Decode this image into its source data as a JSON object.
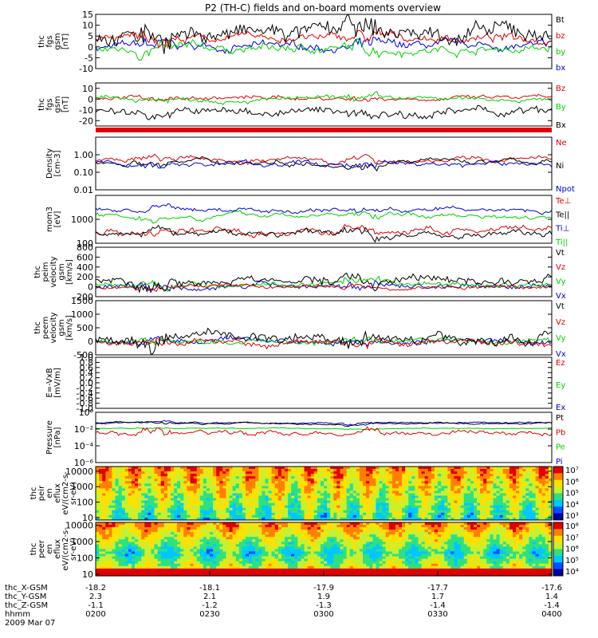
{
  "title": "P2 (TH-C) fields and on-board moments overview",
  "colors": {
    "black": "#000000",
    "red": "#e00000",
    "green": "#00d000",
    "blue": "#0000d0"
  },
  "chart_data": [
    {
      "type": "line",
      "name": "fgs_gsm",
      "ylabel": [
        "thc",
        "fgs",
        "gsm",
        "[nT]"
      ],
      "ylim": [
        -10,
        15
      ],
      "yticks": [
        "15",
        "10",
        "5",
        "0",
        "-5",
        "-10"
      ],
      "yvals": [
        15,
        10,
        5,
        0,
        -5,
        -10
      ],
      "series": [
        {
          "name": "bx",
          "color": "blue",
          "base": 0,
          "amp": 2
        },
        {
          "name": "by",
          "color": "green",
          "base": -1,
          "amp": 2
        },
        {
          "name": "bz",
          "color": "red",
          "base": 4,
          "amp": 2
        },
        {
          "name": "Bt",
          "color": "black",
          "base": 6,
          "amp": 4
        }
      ],
      "legend": [
        "Bt",
        "bz",
        "by",
        "bx"
      ]
    },
    {
      "type": "line",
      "name": "fgs_gsm_B",
      "ylabel": [
        "thc",
        "fgs",
        "gsm",
        "[nT]"
      ],
      "ylim": [
        -25,
        15
      ],
      "yticks": [
        "10",
        "0",
        "-10",
        "-20"
      ],
      "yvals": [
        10,
        0,
        -10,
        -20
      ],
      "series": [
        {
          "name": "Bz",
          "color": "red",
          "base": 1,
          "amp": 2
        },
        {
          "name": "By",
          "color": "green",
          "base": 0,
          "amp": 2
        },
        {
          "name": "Bx",
          "color": "black",
          "base": -12,
          "amp": 4
        }
      ],
      "legend": [
        "Bz",
        "By",
        "Bx"
      ]
    },
    {
      "type": "line",
      "name": "density",
      "ylabel": [
        "Density",
        "[cm-3]"
      ],
      "log": true,
      "ylim": [
        0.01,
        10
      ],
      "yticks": [
        "1.00",
        "0.10",
        "0.01"
      ],
      "yvals": [
        1,
        0.1,
        0.01
      ],
      "series": [
        {
          "name": "Ne",
          "color": "red",
          "base": 0.5,
          "amp": 0.3
        },
        {
          "name": "Ni",
          "color": "black",
          "base": 0.4,
          "amp": 0.3
        },
        {
          "name": "Npot",
          "color": "blue",
          "base": 0.3,
          "amp": 0.3
        }
      ],
      "legend": [
        "Ne",
        "Ni",
        "Npot"
      ]
    },
    {
      "type": "line",
      "name": "temperature",
      "ylabel": [
        "mom3",
        "[eV]"
      ],
      "log": true,
      "ylim": [
        100,
        10000
      ],
      "yticks": [
        "1000",
        "100"
      ],
      "yvals": [
        1000,
        100
      ],
      "series": [
        {
          "name": "Te⊥",
          "color": "red",
          "base": 300,
          "amp": 0.3
        },
        {
          "name": "Te||",
          "color": "black",
          "base": 250,
          "amp": 0.3
        },
        {
          "name": "Ti⊥",
          "color": "blue",
          "base": 2500,
          "amp": 0.2
        },
        {
          "name": "Ti||",
          "color": "green",
          "base": 1500,
          "amp": 0.2
        }
      ],
      "legend": [
        "Te⊥",
        "Te||",
        "Ti⊥",
        "Ti||"
      ]
    },
    {
      "type": "line",
      "name": "velocity_peim",
      "ylabel": [
        "thc",
        "peim",
        "velocity",
        "gsm",
        "[km/s]"
      ],
      "ylim": [
        -200,
        800
      ],
      "yticks": [
        "800",
        "600",
        "400",
        "200",
        "0",
        "-200"
      ],
      "yvals": [
        800,
        600,
        400,
        200,
        0,
        -200
      ],
      "series": [
        {
          "name": "Vx",
          "color": "blue",
          "base": 20,
          "amp": 60
        },
        {
          "name": "Vy",
          "color": "green",
          "base": 40,
          "amp": 50
        },
        {
          "name": "Vz",
          "color": "red",
          "base": 0,
          "amp": 40
        },
        {
          "name": "Vt",
          "color": "black",
          "base": 120,
          "amp": 90
        }
      ],
      "legend": [
        "Vt",
        "Vz",
        "Vy",
        "Vx"
      ]
    },
    {
      "type": "line",
      "name": "velocity_peem",
      "ylabel": [
        "thc",
        "peem",
        "velocity",
        "gsm",
        "[km/s]"
      ],
      "ylim": [
        -500,
        1500
      ],
      "yticks": [
        "1500",
        "1000",
        "500",
        "0",
        "-500"
      ],
      "yvals": [
        1500,
        1000,
        500,
        0,
        -500
      ],
      "series": [
        {
          "name": "Vx",
          "color": "blue",
          "base": 0,
          "amp": 100
        },
        {
          "name": "Vy",
          "color": "green",
          "base": 0,
          "amp": 100
        },
        {
          "name": "Vz",
          "color": "red",
          "base": -50,
          "amp": 120
        },
        {
          "name": "Vt",
          "color": "black",
          "base": 150,
          "amp": 200
        }
      ],
      "legend": [
        "Vt",
        "Vz",
        "Vy",
        "Vx"
      ]
    },
    {
      "type": "line",
      "name": "efield",
      "ylabel": [
        "E=-VxB",
        "[mV/m]"
      ],
      "ylim": [
        -1,
        1
      ],
      "yticks": [
        "1.0",
        "0.8",
        "0.6",
        "0.4",
        "0.2",
        "0.0",
        "-0.2",
        "-0.4",
        "-0.6",
        "-0.8",
        "-1.0"
      ],
      "yvals": [
        1,
        0.8,
        0.6,
        0.4,
        0.2,
        0,
        -0.2,
        -0.4,
        -0.6,
        -0.8,
        -1
      ],
      "series": [],
      "legend": [
        "Ez",
        "Ey",
        "Ex"
      ]
    },
    {
      "type": "line",
      "name": "pressure",
      "ylabel": [
        "Pressure",
        "[nPa]"
      ],
      "log": true,
      "ylim": [
        1e-06,
        1
      ],
      "yticks": [
        "10⁰",
        "10⁻²",
        "10⁻⁴",
        "10⁻⁶"
      ],
      "yvals": [
        1,
        0.01,
        0.0001,
        1e-06
      ],
      "series": [
        {
          "name": "Pi",
          "color": "blue",
          "base": 0.06,
          "amp": 0.2
        },
        {
          "name": "Pe",
          "color": "green",
          "base": 0.012,
          "amp": 0.1
        },
        {
          "name": "Pb",
          "color": "red",
          "base": 0.003,
          "amp": 0.6
        },
        {
          "name": "Pt",
          "color": "black",
          "base": 0.05,
          "amp": 0.2
        }
      ],
      "legend": [
        "Pt",
        "Pb",
        "Pe",
        "Pi"
      ]
    },
    {
      "type": "heatmap",
      "name": "peir_en_eflux",
      "ylabel": [
        "thc",
        "peir",
        "en",
        "eflux",
        "eV/(cm2-s-",
        "sr-eV)"
      ],
      "log": true,
      "ylim": [
        7,
        20000
      ],
      "yticks": [
        "10000",
        "1000",
        "100",
        "10"
      ],
      "yvals": [
        10000,
        1000,
        100,
        10
      ],
      "colorbar": [
        "10⁷",
        "10⁶",
        "10⁵",
        "10⁴",
        "10³"
      ]
    },
    {
      "type": "heatmap",
      "name": "peer_en_eflux",
      "ylabel": [
        "thc",
        "peer",
        "en",
        "eflux",
        "eV/(cm2-s-",
        "sr-eV)"
      ],
      "log": true,
      "ylim": [
        8,
        15000
      ],
      "yticks": [
        "10000",
        "1000",
        "100",
        "10"
      ],
      "yvals": [
        10000,
        1000,
        100,
        10
      ],
      "colorbar": [
        "10⁸",
        "10⁷",
        "10⁶",
        "10⁵",
        "10⁴"
      ]
    }
  ],
  "xaxis": {
    "rows": [
      {
        "label": "thc_X-GSM",
        "values": [
          "-18.2",
          "-18.1",
          "-17.9",
          "-17.7",
          "-17.6"
        ]
      },
      {
        "label": "thc_Y-GSM",
        "values": [
          "2.3",
          "2.1",
          "1.9",
          "1.7",
          "1.4"
        ]
      },
      {
        "label": "thc_Z-GSM",
        "values": [
          "-1.1",
          "-1.2",
          "-1.3",
          "-1.4",
          "-1.4"
        ]
      },
      {
        "label": "hhmm",
        "values": [
          "0200",
          "0230",
          "0300",
          "0330",
          "0400"
        ]
      }
    ],
    "date": "2009 Mar 07"
  }
}
